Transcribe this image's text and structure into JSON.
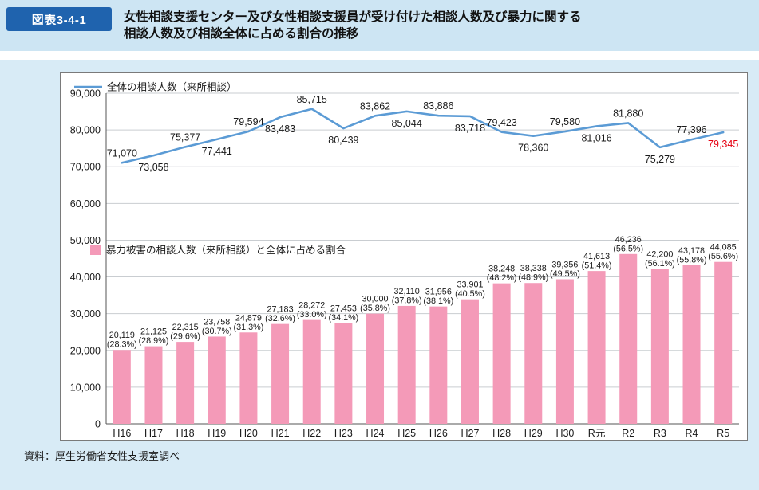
{
  "figure": {
    "badge": "図表3-4-1",
    "title_line1": "女性相談支援センター及び女性相談支援員が受け付けた相談人数及び暴力に関する",
    "title_line2": "相談人数及び相談全体に占める割合の推移",
    "source": "資料：厚生労働省女性支援室調べ"
  },
  "colors": {
    "badge_bg": "#1f63ae",
    "header_bg": "#cde5f3",
    "panel_bg": "#d8ebf6",
    "line": "#5b9bd5",
    "bar": "#f49ab8",
    "text": "#1a1a1a",
    "highlight": "#e60012",
    "grid": "#c9cdd1",
    "axis": "#555555"
  },
  "chart_data": {
    "type": "line+bar",
    "categories": [
      "H16",
      "H17",
      "H18",
      "H19",
      "H20",
      "H21",
      "H22",
      "H23",
      "H24",
      "H25",
      "H26",
      "H27",
      "H28",
      "H29",
      "H30",
      "R元",
      "R2",
      "R3",
      "R4",
      "R5"
    ],
    "series": [
      {
        "name": "全体の相談人数（来所相談）",
        "type": "line",
        "values": [
          71070,
          73058,
          75377,
          77441,
          79594,
          83483,
          85715,
          80439,
          83862,
          85044,
          83886,
          83718,
          79423,
          78360,
          79580,
          81016,
          81880,
          75279,
          77396,
          79345
        ]
      },
      {
        "name": "暴力被害の相談人数（来所相談）と全体に占める割合",
        "type": "bar",
        "values": [
          20119,
          21125,
          22315,
          23758,
          24879,
          27183,
          28272,
          27453,
          30000,
          32110,
          31956,
          33901,
          38248,
          38338,
          39356,
          41613,
          46236,
          42200,
          43178,
          44085
        ],
        "percent_labels": [
          "(28.3%)",
          "(28.9%)",
          "(29.6%)",
          "(30.7%)",
          "(31.3%)",
          "(32.6%)",
          "(33.0%)",
          "(34.1%)",
          "(35.8%)",
          "(37.8%)",
          "(38.1%)",
          "(40.5%)",
          "(48.2%)",
          "(48.9%)",
          "(49.5%)",
          "(51.4%)",
          "(56.5%)",
          "(56.1%)",
          "(55.8%)",
          "(55.6%)"
        ]
      }
    ],
    "ylim": [
      0,
      90000
    ],
    "ytick_step": 10000,
    "grid": true,
    "legend_position": "inside",
    "last_line_label_highlighted": true
  }
}
